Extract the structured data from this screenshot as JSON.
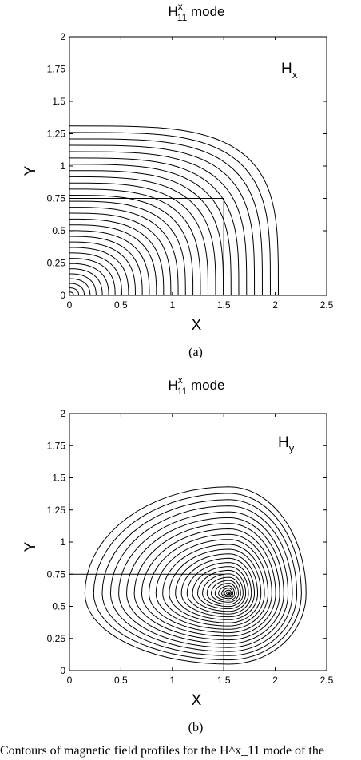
{
  "chart_data": [
    {
      "type": "contour",
      "panel_label": "(a)",
      "title": {
        "main": "H",
        "sup": "x",
        "sub": "11",
        "rest": " mode"
      },
      "field_label": {
        "main": "H",
        "sub": "x"
      },
      "xlabel": "X",
      "ylabel": "Y",
      "xlim": [
        0,
        2.5
      ],
      "ylim": [
        0,
        2
      ],
      "xticks": [
        "0",
        "0.5",
        "1",
        "1.5",
        "2",
        "2.5"
      ],
      "yticks": [
        "0",
        "0.25",
        "0.5",
        "0.75",
        "1",
        "1.25",
        "1.5",
        "1.75",
        "2"
      ],
      "core_rectangle": {
        "x": [
          0,
          1.5
        ],
        "y": [
          0,
          0.75
        ]
      },
      "contours": {
        "shape": "quarter-loops centered at origin",
        "count": 30,
        "outer_x_extent": 2.03,
        "outer_y_extent": 1.31
      }
    },
    {
      "type": "contour",
      "panel_label": "(b)",
      "title": {
        "main": "H",
        "sup": "x",
        "sub": "11",
        "rest": " mode"
      },
      "field_label": {
        "main": "H",
        "sub": "y"
      },
      "xlabel": "X",
      "ylabel": "Y",
      "xlim": [
        0,
        2.5
      ],
      "ylim": [
        0,
        2
      ],
      "xticks": [
        "0",
        "0.5",
        "1",
        "1.5",
        "2",
        "2.5"
      ],
      "yticks": [
        "0",
        "0.25",
        "0.5",
        "0.75",
        "1",
        "1.25",
        "1.5",
        "1.75",
        "2"
      ],
      "core_rectangle": {
        "x": [
          0,
          1.5
        ],
        "y": [
          0,
          0.75
        ]
      },
      "contours": {
        "shape": "nested loops around peak near corner",
        "center": [
          1.55,
          0.6
        ],
        "count": 26,
        "outer_x_range": [
          0.15,
          2.3
        ],
        "outer_y_range": [
          0.05,
          1.43
        ]
      }
    }
  ],
  "caption": "Contours of magnetic field profiles for the H^x_11 mode of the"
}
